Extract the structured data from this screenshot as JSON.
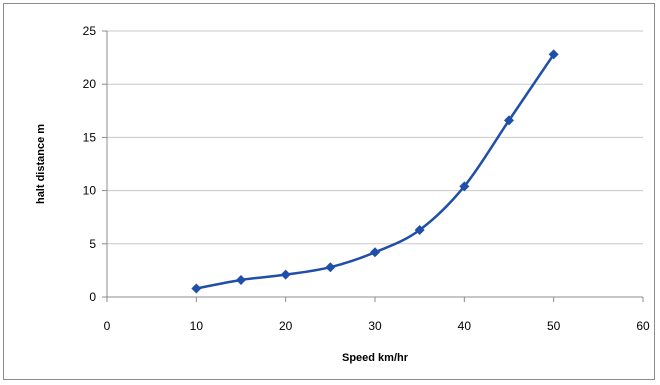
{
  "chart_data": {
    "type": "line",
    "title": "",
    "xlabel": "Speed km/hr",
    "ylabel": "halt distance m",
    "xlim": [
      0,
      60
    ],
    "ylim": [
      0,
      25
    ],
    "xticks": [
      0,
      10,
      20,
      30,
      40,
      50,
      60
    ],
    "yticks": [
      0,
      5,
      10,
      15,
      20,
      25
    ],
    "grid": "horizontal",
    "legend": "none",
    "series": [
      {
        "color": "#1f4fa8",
        "marker": "diamond",
        "smooth": true,
        "x": [
          10,
          15,
          20,
          25,
          30,
          35,
          40,
          45,
          50
        ],
        "y": [
          0.8,
          1.6,
          2.1,
          2.8,
          4.2,
          6.3,
          10.4,
          16.6,
          22.8
        ]
      }
    ]
  }
}
